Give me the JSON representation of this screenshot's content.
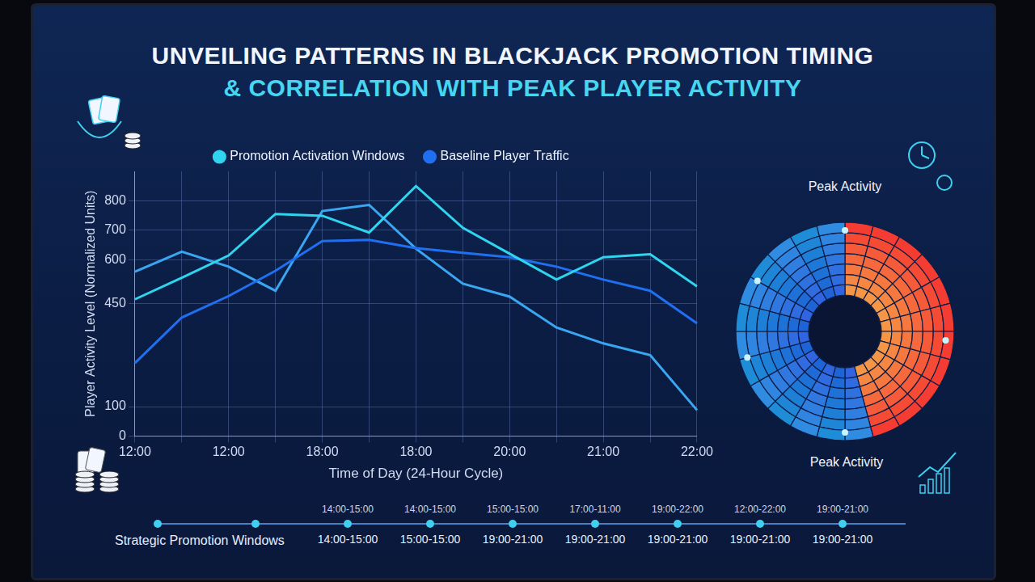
{
  "chart_data": {
    "type": "line",
    "title": "UNVEILING PATTERNS IN BLACKJACK PROMOTION TIMING",
    "subtitle": "& CORRELATION WITH PEAK PLAYER ACTIVITY",
    "x_label": "Time of Day (24-Hour Cycle)",
    "y_label": "Player Activity Level (Normalized Units)",
    "categories": [
      "12:00",
      null,
      "12:00",
      null,
      "18:00",
      null,
      "18:00",
      null,
      "20:00",
      null,
      "21:00",
      null,
      "22:00"
    ],
    "series": [
      {
        "name": "Promotion Activation Windows",
        "color": "#2fd4ee",
        "values": [
          465,
          538,
          614,
          755,
          749,
          692,
          850,
          708,
          620,
          532,
          608,
          618,
          509
        ]
      },
      {
        "name": "Baseline Player Traffic",
        "color": "#1f6ff0",
        "values": [
          248,
          403,
          476,
          562,
          663,
          667,
          639,
          623,
          608,
          576,
          532,
          494,
          383
        ]
      },
      {
        "color": "#3aa6f2",
        "values": [
          559,
          627,
          576,
          494,
          765,
          786,
          637,
          518,
          474,
          369,
          315,
          275,
          88
        ]
      }
    ],
    "ylim": [
      0,
      900
    ],
    "yticks": [
      0,
      100,
      450,
      600,
      700,
      800
    ],
    "grid": true,
    "legend": "top"
  },
  "radial_panel": {
    "labels": [
      "Peak Activity",
      "Peak Activity"
    ]
  },
  "timeline": {
    "title": "Strategic Promotion Windows",
    "upper_labels": [
      "14:00-15:00",
      "14:00-15:00",
      "15:00-15:00",
      "17:00-11:00",
      "19:00-22:00",
      "12:00-22:00",
      "19:00-21:00"
    ],
    "lower_labels": [
      "14:00-15:00",
      "15:00-15:00",
      "19:00-21:00",
      "19:00-21:00",
      "19:00-21:00",
      "19:00-21:00",
      "19:00-21:00"
    ]
  }
}
